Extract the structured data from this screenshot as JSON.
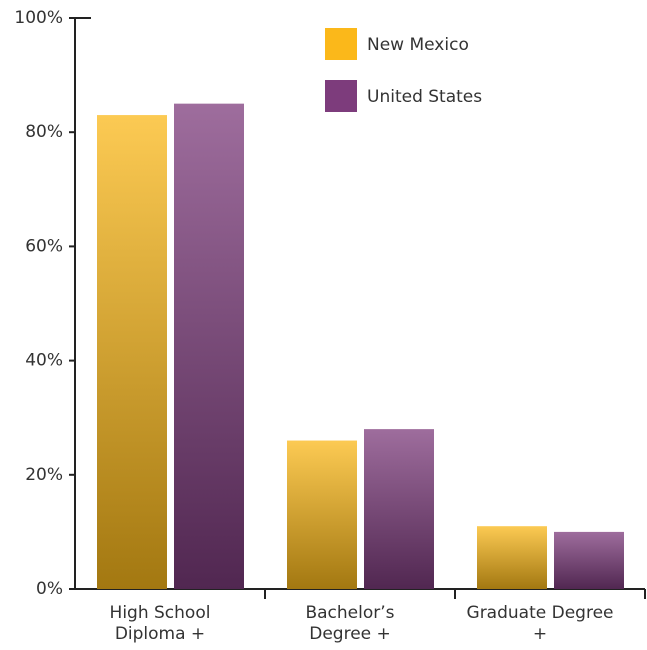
{
  "chart_data": {
    "type": "bar",
    "categories": [
      "High School Diploma +",
      "Bachelor’s Degree +",
      "Graduate Degree +"
    ],
    "series": [
      {
        "name": "New Mexico",
        "color": "#fbb81a",
        "values": [
          83,
          26,
          11
        ]
      },
      {
        "name": "United States",
        "color": "#7d3c7c",
        "values": [
          85,
          28,
          10
        ]
      }
    ],
    "ylim": [
      0,
      100
    ],
    "yticks": [
      {
        "value": 0,
        "label": "0%"
      },
      {
        "value": 20,
        "label": "20%"
      },
      {
        "value": 40,
        "label": "40%"
      },
      {
        "value": 60,
        "label": "60%"
      },
      {
        "value": 80,
        "label": "80%"
      },
      {
        "value": 100,
        "label": "100%"
      }
    ],
    "legend": "top-right"
  }
}
